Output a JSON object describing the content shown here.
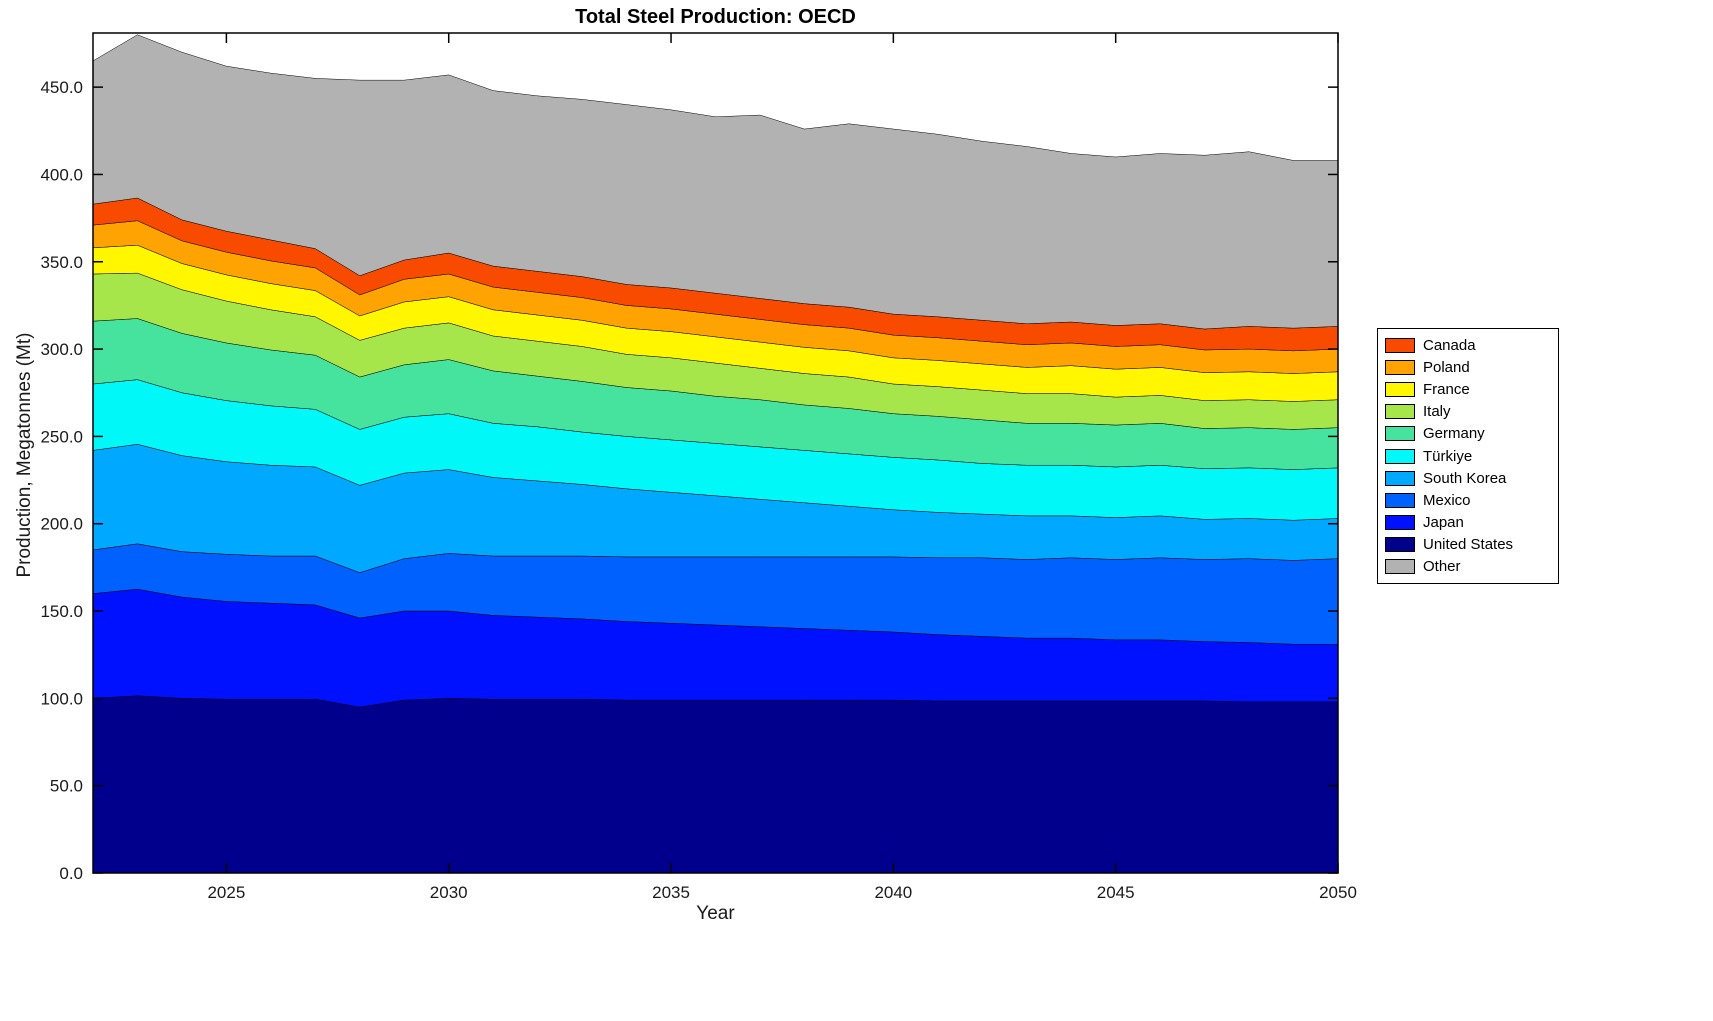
{
  "chart_data": {
    "type": "area",
    "stacked": true,
    "title": "Total Steel Production: OECD",
    "xlabel": "Year",
    "ylabel": "Production, Megatonnes (Mt)",
    "xlim": [
      2022,
      2050
    ],
    "ylim": [
      0,
      481
    ],
    "x_ticks": [
      2025,
      2030,
      2035,
      2040,
      2045,
      2050
    ],
    "y_ticks": [
      0,
      50,
      100,
      150,
      200,
      250,
      300,
      350,
      400,
      450
    ],
    "y_tick_labels": [
      "0.0",
      "50.0",
      "100.0",
      "150.0",
      "200.0",
      "250.0",
      "300.0",
      "350.0",
      "400.0",
      "450.0"
    ],
    "x_tick_labels": [
      "2025",
      "2030",
      "2035",
      "2040",
      "2045",
      "2050"
    ],
    "grid": false,
    "legend_position": "right-outside",
    "x": [
      2022,
      2023,
      2024,
      2025,
      2026,
      2027,
      2028,
      2029,
      2030,
      2031,
      2032,
      2033,
      2034,
      2035,
      2036,
      2037,
      2038,
      2039,
      2040,
      2041,
      2042,
      2043,
      2044,
      2045,
      2046,
      2047,
      2048,
      2049,
      2050
    ],
    "series": [
      {
        "name": "United States",
        "color": "#00008C",
        "values": [
          100,
          101.5,
          100,
          99.5,
          99.5,
          99.5,
          95,
          99,
          100,
          99.5,
          99.5,
          99.5,
          99,
          99,
          99,
          99,
          99,
          99,
          99,
          98.5,
          98.5,
          98.5,
          98.5,
          98.5,
          98.5,
          98.5,
          98,
          98,
          98
        ]
      },
      {
        "name": "Japan",
        "color": "#0011FF",
        "values": [
          60,
          61,
          58,
          56,
          55,
          54,
          51,
          51,
          50,
          48,
          47,
          46,
          45,
          44,
          43,
          42,
          41,
          40,
          39,
          38,
          37,
          36,
          36,
          35,
          35,
          34,
          34,
          33,
          33
        ]
      },
      {
        "name": "Mexico",
        "color": "#0061FF",
        "values": [
          25,
          26,
          26,
          27,
          27,
          28,
          26,
          30,
          33,
          34,
          35,
          36,
          37,
          38,
          39,
          40,
          41,
          42,
          43,
          44,
          45,
          45,
          46,
          46,
          47,
          47,
          48,
          48,
          49
        ]
      },
      {
        "name": "South Korea",
        "color": "#00A9FF",
        "values": [
          57,
          57,
          55,
          53,
          52,
          51,
          50,
          49,
          48,
          45,
          43,
          41,
          39,
          37,
          35,
          33,
          31,
          29,
          27,
          26,
          25,
          25,
          24,
          24,
          24,
          23,
          23,
          23,
          23
        ]
      },
      {
        "name": "Türkiye",
        "color": "#00F8F8",
        "values": [
          38,
          37,
          36,
          35,
          34,
          33,
          32,
          32,
          32,
          31,
          31,
          30,
          30,
          30,
          30,
          30,
          30,
          30,
          30,
          30,
          29,
          29,
          29,
          29,
          29,
          29,
          29,
          29,
          29
        ]
      },
      {
        "name": "Germany",
        "color": "#46E39E",
        "values": [
          36,
          35,
          34,
          33,
          32,
          31,
          30,
          30,
          31,
          30,
          29,
          29,
          28,
          28,
          27,
          27,
          26,
          26,
          25,
          25,
          25,
          24,
          24,
          24,
          24,
          23,
          23,
          23,
          23
        ]
      },
      {
        "name": "Italy",
        "color": "#A6E64B",
        "values": [
          27,
          26,
          25,
          24,
          23,
          22,
          21,
          21,
          21,
          20,
          20,
          20,
          19,
          19,
          19,
          18,
          18,
          18,
          17,
          17,
          17,
          17,
          17,
          16,
          16,
          16,
          16,
          16,
          16
        ]
      },
      {
        "name": "France",
        "color": "#FFF600",
        "values": [
          15,
          16,
          15,
          15,
          15,
          15,
          14,
          15,
          15,
          15,
          15,
          15,
          15,
          15,
          15,
          15,
          15,
          15,
          15,
          15,
          15,
          15,
          16,
          16,
          16,
          16,
          16,
          16,
          16
        ]
      },
      {
        "name": "Poland",
        "color": "#FFA302",
        "values": [
          13,
          14,
          13,
          13,
          13,
          13,
          12,
          13,
          13,
          13,
          13,
          13,
          13,
          13,
          13,
          13,
          13,
          13,
          13,
          13,
          13,
          13,
          13,
          13,
          13,
          13,
          13,
          13,
          13
        ]
      },
      {
        "name": "Canada",
        "color": "#F94B00",
        "values": [
          12,
          13,
          12,
          12,
          12,
          11,
          11,
          11,
          12,
          12,
          12,
          12,
          12,
          12,
          12,
          12,
          12,
          12,
          12,
          12,
          12,
          12,
          12,
          12,
          12,
          12,
          13,
          13,
          13
        ]
      },
      {
        "name": "Other",
        "color": "#B2B2B2",
        "values": [
          82,
          93.5,
          96,
          94.5,
          95.5,
          97.5,
          112,
          103,
          102,
          100.5,
          100.5,
          101.5,
          103,
          102,
          101,
          105,
          100,
          105,
          106,
          104.5,
          102.5,
          101.5,
          96.5,
          96.5,
          97.5,
          99.5,
          100,
          96,
          95
        ]
      }
    ]
  },
  "legend": {
    "entries": [
      {
        "label": "Canada",
        "color": "#F94B00"
      },
      {
        "label": "Poland",
        "color": "#FFA302"
      },
      {
        "label": "France",
        "color": "#FFF600"
      },
      {
        "label": "Italy",
        "color": "#A6E64B"
      },
      {
        "label": "Germany",
        "color": "#46E39E"
      },
      {
        "label": "Türkiye",
        "color": "#00F8F8"
      },
      {
        "label": "South Korea",
        "color": "#00A9FF"
      },
      {
        "label": "Mexico",
        "color": "#0061FF"
      },
      {
        "label": "Japan",
        "color": "#0011FF"
      },
      {
        "label": "United States",
        "color": "#00008C"
      },
      {
        "label": "Other",
        "color": "#B2B2B2"
      }
    ]
  }
}
